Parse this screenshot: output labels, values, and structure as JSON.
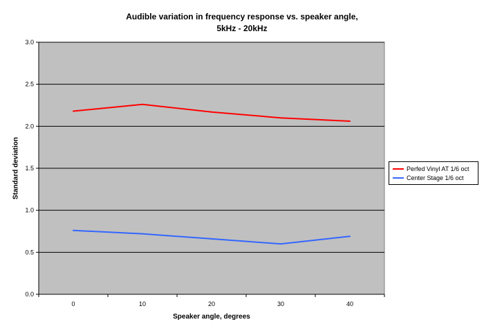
{
  "chart_data": {
    "type": "line",
    "title_line1": "Audible variation in frequency response vs. speaker angle,",
    "title_line2": "5kHz - 20kHz",
    "xlabel": "Speaker angle, degrees",
    "ylabel": "Standard deviation",
    "x": [
      0,
      10,
      20,
      30,
      40
    ],
    "xticks": [
      "0",
      "10",
      "20",
      "30",
      "40"
    ],
    "yticks": [
      "0.0",
      "0.5",
      "1.0",
      "1.5",
      "2.0",
      "2.5",
      "3.0"
    ],
    "ylim": [
      0,
      3
    ],
    "grid": true,
    "legend_position": "right",
    "plot_background": "#c0c0c0",
    "series": [
      {
        "name": "Perfed Vinyl AT 1/6 oct",
        "color": "#ff0000",
        "values": [
          2.18,
          2.26,
          2.17,
          2.1,
          2.06
        ]
      },
      {
        "name": "Center Stage 1/6 oct",
        "color": "#3366ff",
        "values": [
          0.76,
          0.72,
          0.66,
          0.6,
          0.69
        ]
      }
    ]
  }
}
